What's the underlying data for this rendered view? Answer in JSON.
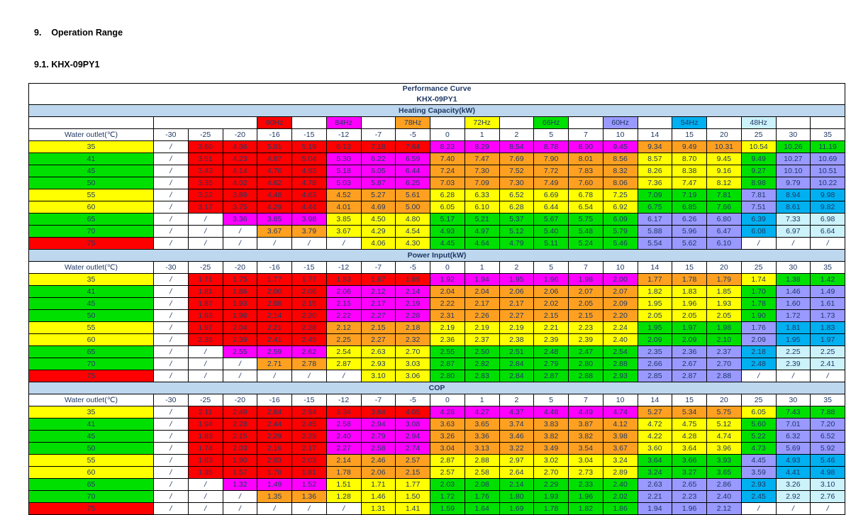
{
  "page": {
    "heading1": "9.    Operation Range",
    "heading2": "9.1. KHX-09PY1",
    "title1": "Performance Curve",
    "title2": "KHX-09PY1"
  },
  "colors": {
    "W": "#FFFFFF",
    "R": "#FF0000",
    "M": "#FF00FF",
    "O": "#FFA020",
    "Y": "#FFFF00",
    "G": "#00E000",
    "P": "#9999FF",
    "C": "#00B0F0",
    "L": "#CCF2FA"
  },
  "table": {
    "row_header_label": "Water outlet(℃)",
    "columns": [
      "-30",
      "-25",
      "-20",
      "-16",
      "-15",
      "-12",
      "-7",
      "-5",
      "0",
      "1",
      "2",
      "5",
      "7",
      "10",
      "14",
      "15",
      "20",
      "25",
      "30",
      "35"
    ],
    "frequencies": [
      {
        "idx": 3,
        "label": "90Hz",
        "color": "R"
      },
      {
        "idx": 5,
        "label": "84Hz",
        "color": "M"
      },
      {
        "idx": 7,
        "label": "78Hz",
        "color": "O"
      },
      {
        "idx": 9,
        "label": "72Hz",
        "color": "Y"
      },
      {
        "idx": 11,
        "label": "66Hz",
        "color": "G"
      },
      {
        "idx": 13,
        "label": "60Hz",
        "color": "P"
      },
      {
        "idx": 15,
        "label": "54Hz",
        "color": "C"
      },
      {
        "idx": 17,
        "label": "48Hz",
        "color": "L"
      }
    ],
    "row_labels": [
      "35",
      "41",
      "45",
      "50",
      "55",
      "60",
      "65",
      "70",
      "75"
    ],
    "row_label_colors": "YGGGYYGGR",
    "cell_colors": [
      "WRRRRRRRMMMMMMOOOYGG",
      "WRRRRMMMOOOOOOYYYGPP",
      "WRRRRMMMOOOOOOYYYGPP",
      "WRRRRMMMOOOOOOYYYGPP",
      "WRRRROOOYYYYYYGGGPCC",
      "WRRRROOOYYYYYYGGGPCC",
      "WWMMMYYYGGGGGGPPPCLL",
      "WWWOOYYYGGGGGGPPPCLL",
      "WWWWWWYYGGGGGGPPPWWW"
    ],
    "sections": [
      {
        "title": "Heating Capacity(kW)",
        "rows": [
          [
            "/",
            "3.60",
            "4.36",
            "5.01",
            "5.19",
            "6.13",
            "7.18",
            "7.64",
            "8.23",
            "8.29",
            "8.54",
            "8.78",
            "8.90",
            "9.45",
            "9.34",
            "9.49",
            "10.31",
            "10.54",
            "10.26",
            "11.19"
          ],
          [
            "/",
            "3.51",
            "4.23",
            "4.87",
            "5.04",
            "5.30",
            "6.22",
            "6.59",
            "7.40",
            "7.47",
            "7.69",
            "7.90",
            "8.01",
            "8.56",
            "8.57",
            "8.70",
            "9.45",
            "9.49",
            "10.27",
            "10.69"
          ],
          [
            "/",
            "3.43",
            "4.14",
            "4.76",
            "4.93",
            "5.18",
            "6.05",
            "6.44",
            "7.24",
            "7.30",
            "7.52",
            "7.72",
            "7.83",
            "8.32",
            "8.26",
            "8.38",
            "9.16",
            "9.27",
            "10.10",
            "10.51"
          ],
          [
            "/",
            "3.35",
            "4.02",
            "4.62",
            "4.78",
            "5.03",
            "5.87",
            "6.25",
            "7.03",
            "7.09",
            "7.30",
            "7.49",
            "7.60",
            "8.06",
            "7.36",
            "7.47",
            "8.12",
            "8.98",
            "9.79",
            "10.22"
          ],
          [
            "/",
            "3.22",
            "3.89",
            "4.48",
            "4.63",
            "4.52",
            "5.27",
            "5.61",
            "6.28",
            "6.33",
            "6.52",
            "6.69",
            "6.78",
            "7.25",
            "7.09",
            "7.19",
            "7.81",
            "7.81",
            "8.94",
            "9.98"
          ],
          [
            "/",
            "3.17",
            "3.75",
            "4.29",
            "4.44",
            "4.01",
            "4.69",
            "5.00",
            "6.05",
            "6.10",
            "6.28",
            "6.44",
            "6.54",
            "6.92",
            "6.75",
            "6.85",
            "7.66",
            "7.51",
            "8.61",
            "9.82"
          ],
          [
            "/",
            "/",
            "3.36",
            "3.85",
            "3.98",
            "3.85",
            "4.50",
            "4.80",
            "5.17",
            "5.21",
            "5.37",
            "5.67",
            "5.75",
            "6.09",
            "6.17",
            "6.26",
            "6.80",
            "6.39",
            "7.33",
            "6.98"
          ],
          [
            "/",
            "/",
            "/",
            "3.67",
            "3.79",
            "3.67",
            "4.29",
            "4.54",
            "4.93",
            "4.97",
            "5.12",
            "5.40",
            "5.48",
            "5.79",
            "5.88",
            "5.96",
            "6.47",
            "6.08",
            "6.97",
            "6.64"
          ],
          [
            "/",
            "/",
            "/",
            "/",
            "/",
            "/",
            "4.06",
            "4.30",
            "4.45",
            "4.64",
            "4.79",
            "5.11",
            "5.24",
            "5.46",
            "5.54",
            "5.62",
            "6.10",
            "/",
            "/",
            "/"
          ]
        ]
      },
      {
        "title": "Power Input(kW)",
        "rows": [
          [
            "/",
            "1.71",
            "1.75",
            "1.77",
            "1.77",
            "1.83",
            "1.87",
            "1.89",
            "1.92",
            "1.94",
            "1.95",
            "1.96",
            "1.98",
            "2.00",
            "1.77",
            "1.78",
            "1.79",
            "1.74",
            "1.38",
            "1.42"
          ],
          [
            "/",
            "1.81",
            "1.86",
            "2.00",
            "2.06",
            "2.06",
            "2.12",
            "2.14",
            "2.04",
            "2.04",
            "2.06",
            "2.06",
            "2.07",
            "2.07",
            "1.82",
            "1.83",
            "1.85",
            "1.70",
            "1.46",
            "1.49"
          ],
          [
            "/",
            "1.87",
            "1.93",
            "2.08",
            "2.15",
            "2.15",
            "2.17",
            "2.19",
            "2.22",
            "2.17",
            "2.17",
            "2.02",
            "2.05",
            "2.09",
            "1.95",
            "1.96",
            "1.93",
            "1.78",
            "1.60",
            "1.61"
          ],
          [
            "/",
            "1.93",
            "1.98",
            "2.14",
            "2.20",
            "2.22",
            "2.27",
            "2.28",
            "2.31",
            "2.26",
            "2.27",
            "2.15",
            "2.15",
            "2.20",
            "2.05",
            "2.05",
            "2.05",
            "1.90",
            "1.72",
            "1.73"
          ],
          [
            "/",
            "1.97",
            "2.04",
            "2.21",
            "2.28",
            "2.12",
            "2.15",
            "2.18",
            "2.19",
            "2.19",
            "2.19",
            "2.21",
            "2.23",
            "2.24",
            "1.95",
            "1.97",
            "1.98",
            "1.76",
            "1.81",
            "1.83"
          ],
          [
            "/",
            "2.35",
            "2.39",
            "2.41",
            "2.45",
            "2.25",
            "2.27",
            "2.32",
            "2.36",
            "2.37",
            "2.38",
            "2.39",
            "2.39",
            "2.40",
            "2.09",
            "2.09",
            "2.10",
            "2.09",
            "1.95",
            "1.97"
          ],
          [
            "/",
            "/",
            "2.55",
            "2.59",
            "2.62",
            "2.54",
            "2.63",
            "2.70",
            "2.55",
            "2.50",
            "2.51",
            "2.48",
            "2.47",
            "2.54",
            "2.35",
            "2.36",
            "2.37",
            "2.18",
            "2.25",
            "2.25"
          ],
          [
            "/",
            "/",
            "/",
            "2.71",
            "2.78",
            "2.87",
            "2.93",
            "3.03",
            "2.87",
            "2.82",
            "2.84",
            "2.79",
            "2.80",
            "2.88",
            "2.66",
            "2.67",
            "2.70",
            "2.48",
            "2.39",
            "2.41"
          ],
          [
            "/",
            "/",
            "/",
            "/",
            "/",
            "/",
            "3.10",
            "3.06",
            "2.80",
            "2.83",
            "2.84",
            "2.87",
            "2.88",
            "2.93",
            "2.85",
            "2.87",
            "2.88",
            "/",
            "/",
            "/"
          ]
        ]
      },
      {
        "title": "COP",
        "rows": [
          [
            "/",
            "2.11",
            "2.49",
            "2.84",
            "2.94",
            "3.34",
            "3.84",
            "4.05",
            "4.28",
            "4.27",
            "4.37",
            "4.48",
            "4.49",
            "4.74",
            "5.27",
            "5.34",
            "5.75",
            "6.05",
            "7.43",
            "7.88"
          ],
          [
            "/",
            "1.94",
            "2.28",
            "2.44",
            "2.45",
            "2.58",
            "2.94",
            "3.08",
            "3.63",
            "3.65",
            "3.74",
            "3.83",
            "3.87",
            "4.12",
            "4.72",
            "4.75",
            "5.12",
            "5.60",
            "7.01",
            "7.20"
          ],
          [
            "/",
            "1.83",
            "2.15",
            "2.29",
            "2.29",
            "2.40",
            "2.79",
            "2.94",
            "3.26",
            "3.36",
            "3.46",
            "3.82",
            "3.82",
            "3.98",
            "4.22",
            "4.28",
            "4.74",
            "5.22",
            "6.32",
            "6.52"
          ],
          [
            "/",
            "1.74",
            "2.03",
            "2.16",
            "2.17",
            "2.27",
            "2.58",
            "2.74",
            "3.04",
            "3.13",
            "3.22",
            "3.49",
            "3.54",
            "3.67",
            "3.60",
            "3.64",
            "3.96",
            "4.73",
            "5.69",
            "5.92"
          ],
          [
            "/",
            "1.63",
            "1.90",
            "2.03",
            "2.03",
            "2.14",
            "2.46",
            "2.57",
            "2.87",
            "2.88",
            "2.97",
            "3.02",
            "3.04",
            "3.24",
            "3.64",
            "3.66",
            "3.93",
            "4.45",
            "4.93",
            "5.46"
          ],
          [
            "/",
            "1.35",
            "1.57",
            "1.78",
            "1.81",
            "1.78",
            "2.06",
            "2.15",
            "2.57",
            "2.58",
            "2.64",
            "2.70",
            "2.73",
            "2.89",
            "3.24",
            "3.27",
            "3.65",
            "3.59",
            "4.41",
            "4.98"
          ],
          [
            "/",
            "/",
            "1.32",
            "1.49",
            "1.52",
            "1.51",
            "1.71",
            "1.77",
            "2.03",
            "2.08",
            "2.14",
            "2.29",
            "2.33",
            "2.40",
            "2.63",
            "2.65",
            "2.86",
            "2.93",
            "3.26",
            "3.10"
          ],
          [
            "/",
            "/",
            "/",
            "1.35",
            "1.36",
            "1.28",
            "1.46",
            "1.50",
            "1.72",
            "1.76",
            "1.80",
            "1.93",
            "1.96",
            "2.02",
            "2.21",
            "2.23",
            "2.40",
            "2.45",
            "2.92",
            "2.76"
          ],
          [
            "/",
            "/",
            "/",
            "/",
            "/",
            "/",
            "1.31",
            "1.41",
            "1.59",
            "1.64",
            "1.69",
            "1.78",
            "1.82",
            "1.86",
            "1.94",
            "1.96",
            "2.12",
            "/",
            "/",
            "/"
          ]
        ]
      }
    ]
  }
}
